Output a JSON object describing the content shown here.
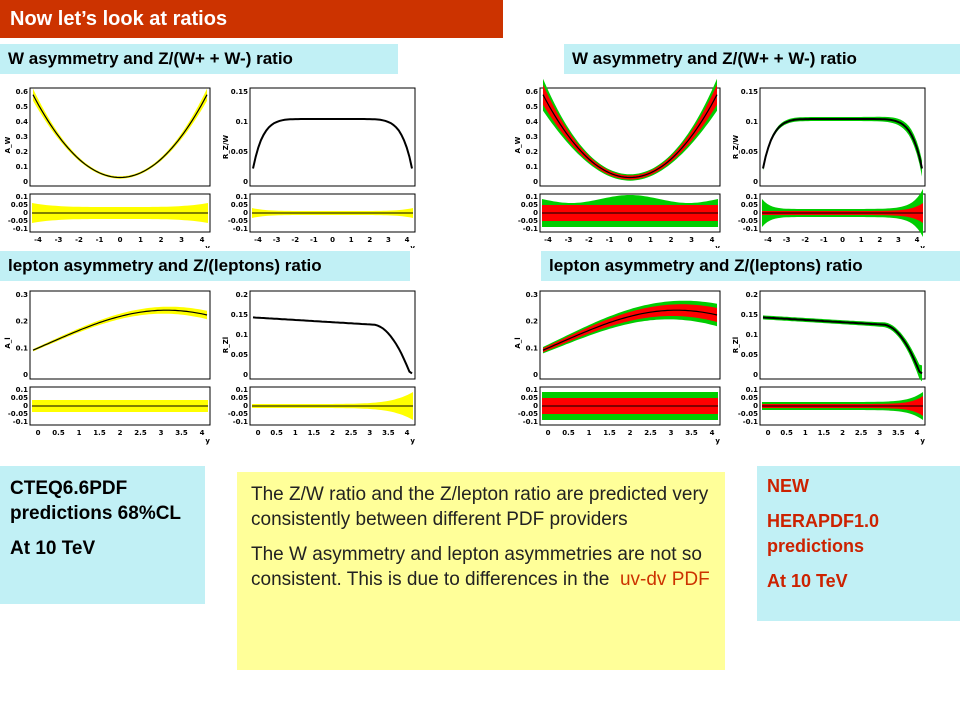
{
  "slide_title": "Now let’s look at ratios",
  "headers": {
    "w_left": "W asymmetry and Z/(W+ + W-) ratio",
    "w_right": "W asymmetry and Z/(W+ + W-) ratio",
    "l_left": "lepton asymmetry and Z/(leptons) ratio",
    "l_right": "lepton asymmetry and Z/(leptons) ratio"
  },
  "left_box": {
    "line1": "CTEQ6.6PDF predictions 68%CL",
    "line2": "At 10 TeV"
  },
  "right_box": {
    "line1": "NEW",
    "line2": "HERAPDF1.0 predictions",
    "line3": "At 10 TeV"
  },
  "note": {
    "p1": "The Z/W ratio and the Z/lepton ratio are predicted very consistently between different PDF providers",
    "p2_start": "The W asymmetry and lepton asymmetries are not so consistent. This is due to differences in the",
    "p2_highlight": "uv-dv PDF"
  },
  "plots": {
    "y_ticks_aw": [
      "0.6",
      "0.5",
      "0.4",
      "0.3",
      "0.2",
      "0.1",
      "0"
    ],
    "y_ticks_rzw": [
      "0.15",
      "0.1",
      "0.05",
      "0"
    ],
    "y_ticks_al": [
      "0.3",
      "0.2",
      "0.1",
      "0"
    ],
    "y_ticks_rzl": [
      "0.2",
      "0.15",
      "0.1",
      "0.05",
      "0"
    ],
    "ratio_ticks": [
      "0.1",
      "0.05",
      "0",
      "-0.05",
      "-0.1"
    ],
    "x_ticks_w": [
      "-4",
      "-3",
      "-2",
      "-1",
      "0",
      "1",
      "2",
      "3",
      "4"
    ],
    "x_ticks_l": [
      "0",
      "0.5",
      "1",
      "1.5",
      "2",
      "2.5",
      "3",
      "3.5",
      "4"
    ],
    "ylabel_aw": "A_W",
    "ylabel_rzw": "R_Z/W",
    "ylabel_al": "A_l",
    "ylabel_rzl": "R_Zl",
    "xlabel": "y"
  },
  "colors": {
    "title_bg": "#cc3300",
    "header_bg": "#c1f0f5",
    "note_bg": "#ffff99",
    "cteq_band": "#ffff00",
    "hera_inner": "#ff0000",
    "hera_outer": "#00cc00"
  }
}
